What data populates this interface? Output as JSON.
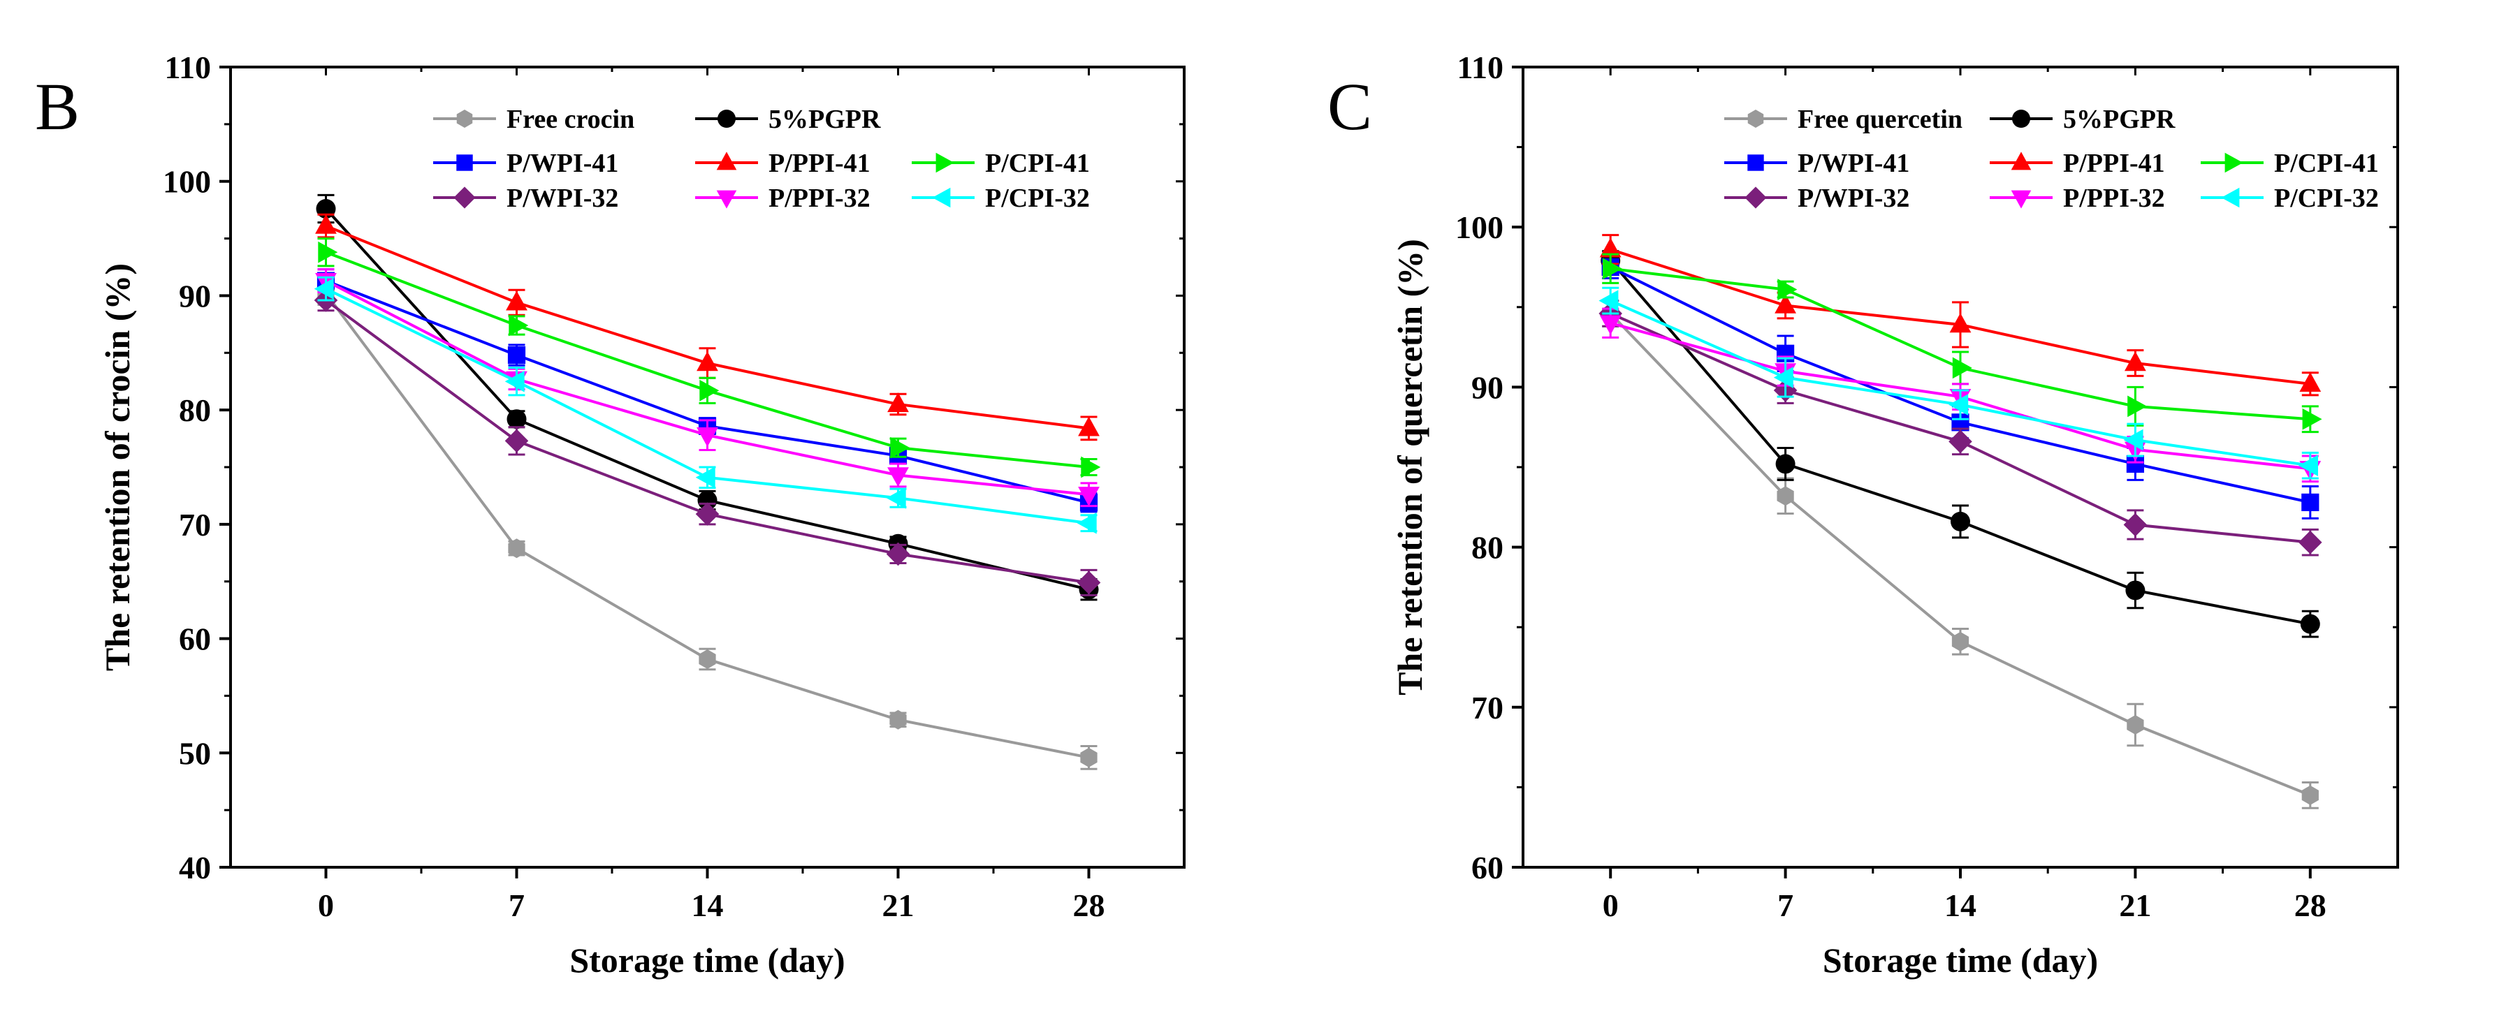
{
  "chart_data": [
    {
      "type": "line",
      "panel_label": "B",
      "xlabel": "Storage time (day)",
      "ylabel": "The retention of crocin (%)",
      "x": [
        0,
        7,
        14,
        21,
        28
      ],
      "xticks": [
        "0",
        "7",
        "14",
        "21",
        "28"
      ],
      "xlim": [
        -3.5,
        31.5
      ],
      "ylim": [
        40,
        110
      ],
      "yticks": [
        "40",
        "50",
        "60",
        "70",
        "80",
        "90",
        "100",
        "110"
      ],
      "grid": false,
      "legend_position": "top",
      "series": [
        {
          "name": "Free crocin",
          "color": "#999999",
          "marker": "hexagon",
          "values": [
            90.2,
            67.9,
            58.2,
            52.9,
            49.6
          ],
          "err": [
            1.0,
            0.6,
            0.9,
            0.6,
            1.0
          ]
        },
        {
          "name": "5%PGPR",
          "color": "#000000",
          "marker": "circle",
          "values": [
            97.6,
            79.2,
            72.1,
            68.3,
            64.3
          ],
          "err": [
            1.2,
            0.7,
            0.8,
            0.6,
            0.9
          ]
        },
        {
          "name": "P/WPI-41",
          "color": "#0000ff",
          "marker": "square",
          "values": [
            91.3,
            84.8,
            78.6,
            76.0,
            71.9
          ],
          "err": [
            1.0,
            0.9,
            0.7,
            0.6,
            0.8
          ]
        },
        {
          "name": "P/PPI-41",
          "color": "#ff0000",
          "marker": "triangle-up",
          "values": [
            96.1,
            89.4,
            84.1,
            80.5,
            78.4
          ],
          "err": [
            1.0,
            1.1,
            1.3,
            0.9,
            1.0
          ]
        },
        {
          "name": "P/CPI-41",
          "color": "#00ee00",
          "marker": "triangle-right",
          "values": [
            93.8,
            87.4,
            81.7,
            76.7,
            75.0
          ],
          "err": [
            1.2,
            0.8,
            1.1,
            0.8,
            0.7
          ]
        },
        {
          "name": "P/WPI-32",
          "color": "#7b1f7b",
          "marker": "diamond",
          "values": [
            89.6,
            77.3,
            70.9,
            67.4,
            64.9
          ],
          "err": [
            0.9,
            1.2,
            0.9,
            0.8,
            1.1
          ]
        },
        {
          "name": "P/PPI-32",
          "color": "#ff00ff",
          "marker": "triangle-down",
          "values": [
            91.3,
            82.7,
            77.8,
            74.3,
            72.6
          ],
          "err": [
            1.0,
            0.9,
            1.3,
            1.0,
            1.0
          ]
        },
        {
          "name": "P/CPI-32",
          "color": "#00ffff",
          "marker": "triangle-left",
          "values": [
            90.6,
            82.5,
            74.1,
            72.3,
            70.1
          ],
          "err": [
            1.0,
            1.2,
            0.9,
            0.8,
            0.7
          ]
        }
      ]
    },
    {
      "type": "line",
      "panel_label": "C",
      "xlabel": "Storage time (day)",
      "ylabel": "The retention of quercetin (%)",
      "x": [
        0,
        7,
        14,
        21,
        28
      ],
      "xticks": [
        "0",
        "7",
        "14",
        "21",
        "28"
      ],
      "xlim": [
        -3.5,
        31.5
      ],
      "ylim": [
        60,
        110
      ],
      "yticks": [
        "60",
        "70",
        "80",
        "90",
        "100",
        "110"
      ],
      "grid": false,
      "legend_position": "top",
      "series": [
        {
          "name": "Free quercetin",
          "color": "#999999",
          "marker": "hexagon",
          "values": [
            94.6,
            83.2,
            74.1,
            68.9,
            64.5
          ],
          "err": [
            0.8,
            1.1,
            0.8,
            1.3,
            0.8
          ]
        },
        {
          "name": "5%PGPR",
          "color": "#000000",
          "marker": "circle",
          "values": [
            97.9,
            85.2,
            81.6,
            77.3,
            75.2
          ],
          "err": [
            0.6,
            1.0,
            1.0,
            1.1,
            0.8
          ]
        },
        {
          "name": "P/WPI-41",
          "color": "#0000ff",
          "marker": "square",
          "values": [
            97.5,
            92.1,
            87.8,
            85.2,
            82.8
          ],
          "err": [
            0.7,
            1.1,
            1.0,
            1.0,
            1.0
          ]
        },
        {
          "name": "P/PPI-41",
          "color": "#ff0000",
          "marker": "triangle-up",
          "values": [
            98.6,
            95.1,
            93.9,
            91.5,
            90.2
          ],
          "err": [
            0.9,
            0.8,
            1.4,
            0.8,
            0.7
          ]
        },
        {
          "name": "P/CPI-41",
          "color": "#00ee00",
          "marker": "triangle-right",
          "values": [
            97.4,
            96.1,
            91.2,
            88.8,
            88.0
          ],
          "err": [
            0.9,
            0.5,
            1.0,
            1.2,
            0.8
          ]
        },
        {
          "name": "P/WPI-32",
          "color": "#7b1f7b",
          "marker": "diamond",
          "values": [
            94.6,
            89.8,
            86.6,
            81.4,
            80.3
          ],
          "err": [
            0.8,
            0.8,
            0.8,
            0.9,
            0.8
          ]
        },
        {
          "name": "P/PPI-32",
          "color": "#ff00ff",
          "marker": "triangle-down",
          "values": [
            94.0,
            91.0,
            89.4,
            86.1,
            84.9
          ],
          "err": [
            0.9,
            0.9,
            0.8,
            0.8,
            0.8
          ]
        },
        {
          "name": "P/CPI-32",
          "color": "#00ffff",
          "marker": "triangle-left",
          "values": [
            95.4,
            90.6,
            88.9,
            86.7,
            85.1
          ],
          "err": [
            0.8,
            1.2,
            0.9,
            1.0,
            0.8
          ]
        }
      ]
    }
  ]
}
